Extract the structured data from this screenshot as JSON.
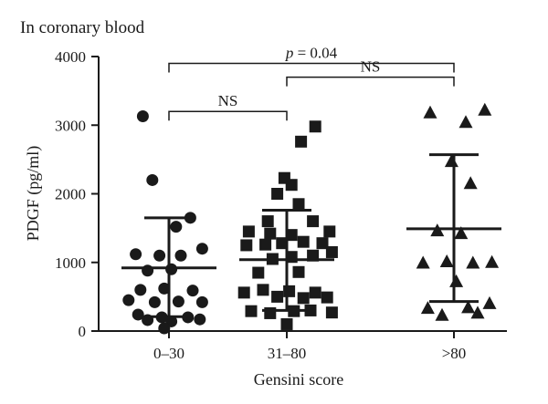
{
  "chart_data": {
    "type": "scatter",
    "title": "In coronary blood",
    "xlabel": "Gensini score",
    "ylabel": "PDGF (pg/ml)",
    "ylim": [
      0,
      4000
    ],
    "yticks": [
      0,
      1000,
      2000,
      3000,
      4000
    ],
    "categories": [
      "0–30",
      "31–80",
      ">80"
    ],
    "marker_color": "#1a1a1a",
    "groups": [
      {
        "category": "0–30",
        "marker": "circle",
        "mean": 920,
        "sd_low": 210,
        "sd_high": 1650,
        "points": [
          {
            "x": -0.55,
            "y": 3130
          },
          {
            "x": -0.35,
            "y": 2200
          },
          {
            "x": 0.45,
            "y": 1650
          },
          {
            "x": 0.15,
            "y": 1520
          },
          {
            "x": -0.7,
            "y": 1120
          },
          {
            "x": -0.2,
            "y": 1100
          },
          {
            "x": 0.25,
            "y": 1100
          },
          {
            "x": 0.7,
            "y": 1200
          },
          {
            "x": -0.45,
            "y": 880
          },
          {
            "x": 0.05,
            "y": 900
          },
          {
            "x": -0.6,
            "y": 600
          },
          {
            "x": -0.1,
            "y": 620
          },
          {
            "x": 0.5,
            "y": 590
          },
          {
            "x": -0.85,
            "y": 450
          },
          {
            "x": -0.3,
            "y": 420
          },
          {
            "x": 0.2,
            "y": 430
          },
          {
            "x": 0.7,
            "y": 420
          },
          {
            "x": -0.65,
            "y": 240
          },
          {
            "x": -0.15,
            "y": 200
          },
          {
            "x": 0.4,
            "y": 200
          },
          {
            "x": -0.45,
            "y": 160
          },
          {
            "x": 0.05,
            "y": 140
          },
          {
            "x": 0.65,
            "y": 170
          },
          {
            "x": -0.1,
            "y": 40
          }
        ]
      },
      {
        "category": "31–80",
        "marker": "square",
        "mean": 1040,
        "sd_low": 300,
        "sd_high": 1760,
        "points": [
          {
            "x": 0.6,
            "y": 2980
          },
          {
            "x": 0.3,
            "y": 2760
          },
          {
            "x": -0.05,
            "y": 2230
          },
          {
            "x": 0.1,
            "y": 2130
          },
          {
            "x": -0.2,
            "y": 2000
          },
          {
            "x": 0.25,
            "y": 1850
          },
          {
            "x": -0.4,
            "y": 1600
          },
          {
            "x": 0.55,
            "y": 1600
          },
          {
            "x": -0.8,
            "y": 1450
          },
          {
            "x": -0.35,
            "y": 1420
          },
          {
            "x": 0.1,
            "y": 1400
          },
          {
            "x": 0.9,
            "y": 1450
          },
          {
            "x": -0.85,
            "y": 1250
          },
          {
            "x": -0.45,
            "y": 1260
          },
          {
            "x": -0.1,
            "y": 1280
          },
          {
            "x": 0.35,
            "y": 1300
          },
          {
            "x": 0.75,
            "y": 1280
          },
          {
            "x": 0.95,
            "y": 1150
          },
          {
            "x": -0.3,
            "y": 1050
          },
          {
            "x": 0.1,
            "y": 1080
          },
          {
            "x": 0.55,
            "y": 1100
          },
          {
            "x": -0.6,
            "y": 850
          },
          {
            "x": 0.25,
            "y": 860
          },
          {
            "x": -0.9,
            "y": 560
          },
          {
            "x": -0.5,
            "y": 600
          },
          {
            "x": 0.05,
            "y": 580
          },
          {
            "x": 0.6,
            "y": 560
          },
          {
            "x": -0.2,
            "y": 500
          },
          {
            "x": 0.35,
            "y": 480
          },
          {
            "x": 0.85,
            "y": 490
          },
          {
            "x": -0.75,
            "y": 290
          },
          {
            "x": -0.35,
            "y": 260
          },
          {
            "x": 0.15,
            "y": 290
          },
          {
            "x": 0.5,
            "y": 300
          },
          {
            "x": 0.95,
            "y": 270
          },
          {
            "x": 0.0,
            "y": 100
          }
        ]
      },
      {
        "category": ">80",
        "marker": "triangle",
        "mean": 1490,
        "sd_low": 430,
        "sd_high": 2570,
        "points": [
          {
            "x": -0.5,
            "y": 3180
          },
          {
            "x": 0.25,
            "y": 3040
          },
          {
            "x": 0.65,
            "y": 3220
          },
          {
            "x": -0.05,
            "y": 2470
          },
          {
            "x": 0.35,
            "y": 2150
          },
          {
            "x": -0.35,
            "y": 1460
          },
          {
            "x": 0.15,
            "y": 1420
          },
          {
            "x": -0.65,
            "y": 990
          },
          {
            "x": -0.15,
            "y": 1010
          },
          {
            "x": 0.4,
            "y": 990
          },
          {
            "x": 0.8,
            "y": 1000
          },
          {
            "x": 0.05,
            "y": 720
          },
          {
            "x": -0.55,
            "y": 330
          },
          {
            "x": 0.3,
            "y": 340
          },
          {
            "x": 0.75,
            "y": 400
          },
          {
            "x": -0.25,
            "y": 230
          },
          {
            "x": 0.5,
            "y": 260
          }
        ]
      }
    ],
    "comparisons": [
      {
        "from": "0–30",
        "to": ">80",
        "y": 3900,
        "label": "p = 0.04"
      },
      {
        "from": "31–80",
        "to": ">80",
        "y": 3700,
        "label": "NS"
      },
      {
        "from": "0–30",
        "to": "31–80",
        "y": 3200,
        "label": "NS"
      }
    ]
  }
}
